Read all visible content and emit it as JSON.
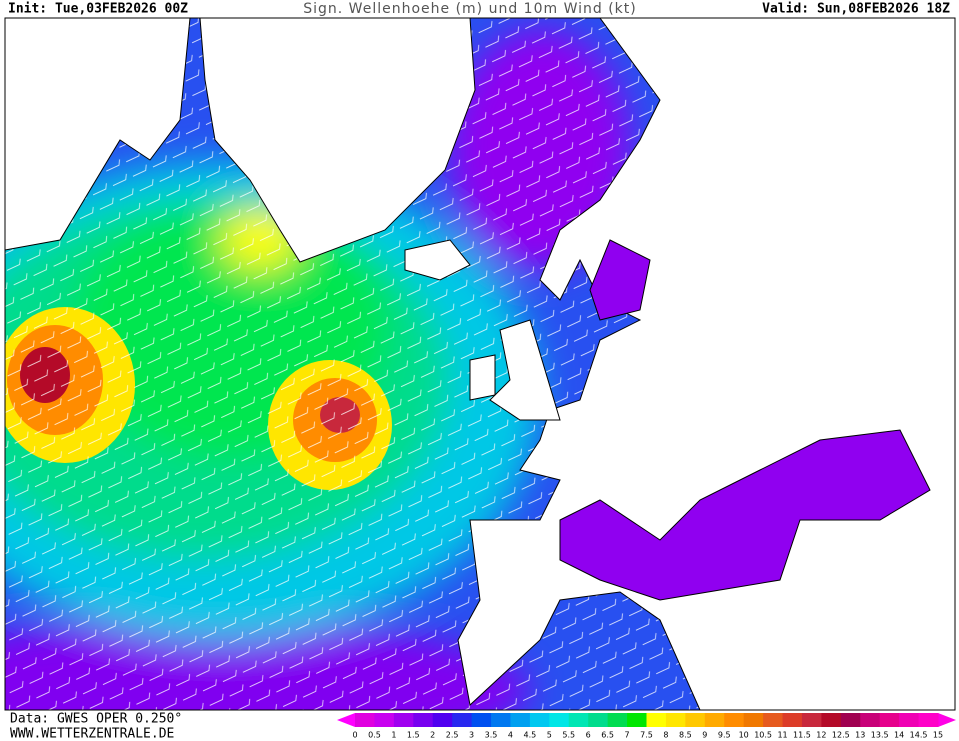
{
  "header": {
    "init": "Init: Tue,03FEB2026 00Z",
    "title": "Sign. Wellenhoehe (m) und 10m Wind (kt)",
    "valid": "Valid: Sun,08FEB2026 18Z"
  },
  "footer": {
    "source": "Data: GWES OPER 0.250°",
    "website": "WWW.WETTERZENTRALE.DE"
  },
  "legend": {
    "ticks": [
      0,
      0.5,
      1,
      1.5,
      2,
      2.5,
      3,
      3.5,
      4,
      4.5,
      5,
      5.5,
      6,
      6.5,
      7,
      7.5,
      8,
      8.5,
      9,
      9.5,
      10,
      10.5,
      11,
      11.5,
      12,
      12.5,
      13,
      13.5,
      14,
      14.5,
      15
    ],
    "colors": [
      "#e000e0",
      "#c800f0",
      "#a000f0",
      "#7800f0",
      "#5000f0",
      "#2828f0",
      "#0050f0",
      "#0078f0",
      "#00a0f0",
      "#00c8f0",
      "#00e6e6",
      "#00e6b4",
      "#00dc8c",
      "#00dc50",
      "#00e600",
      "#ffff00",
      "#ffe600",
      "#ffc800",
      "#ffaa00",
      "#ff8c00",
      "#f07800",
      "#e65a1e",
      "#dc3c28",
      "#c8283c",
      "#b40a28",
      "#a00050",
      "#c80078",
      "#e6008c",
      "#f000b4",
      "#ff00c8"
    ],
    "under_color": "#ff00ff",
    "over_color": "#ff00e6"
  }
}
